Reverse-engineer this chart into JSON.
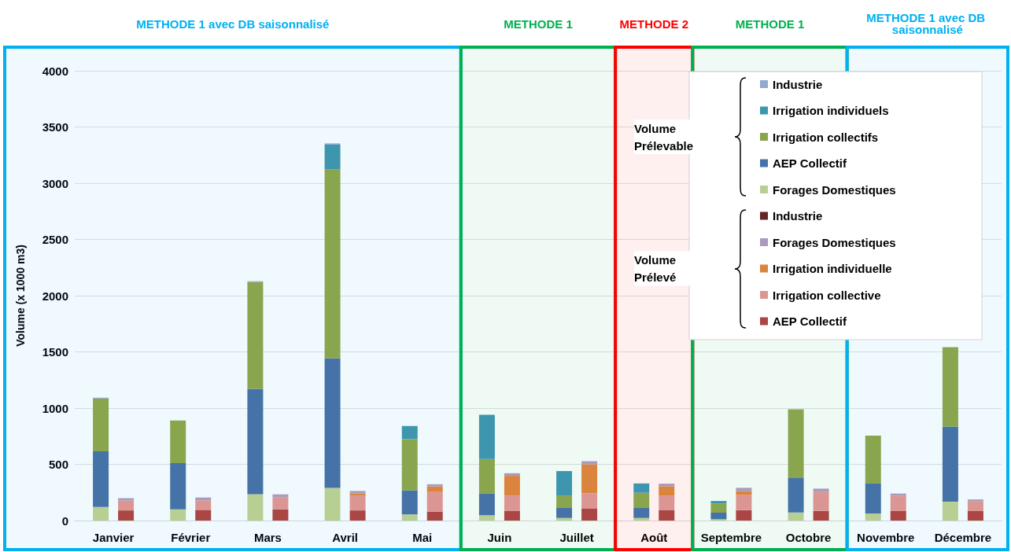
{
  "chart_data": [
    {
      "type": "bar",
      "stacked": true,
      "ylabel": "Volume (x 1000 m3)",
      "legend_title": "Volume Prélevable",
      "categories": [
        "Janvier",
        "Février",
        "Mars",
        "Avril",
        "Mai",
        "Juin",
        "Juillet",
        "Août",
        "Septembre",
        "Octobre",
        "Novembre",
        "Décembre"
      ],
      "series": [
        {
          "name": "Forages Domestiques",
          "color": "#b8cf94",
          "values": [
            120,
            100,
            235,
            290,
            55,
            47,
            23,
            23,
            12,
            72,
            63,
            167
          ]
        },
        {
          "name": "AEP Collectif",
          "color": "#4572a7",
          "values": [
            495,
            410,
            937,
            1153,
            213,
            195,
            89,
            89,
            58,
            305,
            270,
            668
          ]
        },
        {
          "name": "Irrigation collectifs",
          "color": "#89a54e",
          "values": [
            470,
            380,
            949,
            1679,
            456,
            305,
            111,
            135,
            81,
            612,
            423,
            707
          ]
        },
        {
          "name": "Irrigation individuels",
          "color": "#3d96ae",
          "values": [
            0,
            0,
            0,
            221,
            117,
            393,
            217,
            83,
            23,
            0,
            0,
            0
          ]
        },
        {
          "name": "Industrie",
          "color": "#93a9cf",
          "values": [
            8,
            0,
            8,
            11,
            0,
            0,
            0,
            0,
            0,
            0,
            0,
            null
          ]
        }
      ],
      "ylim": [
        0,
        4000
      ],
      "yticks": [
        0,
        500,
        1000,
        1500,
        2000,
        2500,
        3000,
        3500,
        4000
      ],
      "grid": "y",
      "legend": "top right",
      "bands": [
        {
          "axis": "x",
          "from": "Janvier",
          "to": "Mai",
          "label": "METHODE 1 avec DB saisonnalisé",
          "color": "#00b0f0"
        },
        {
          "axis": "x",
          "from": "Juin",
          "to": "Juillet",
          "label": "METHODE 1",
          "color": "#00b050"
        },
        {
          "axis": "x",
          "from": "Août",
          "to": "Août",
          "label": "METHODE 2",
          "color": "#ff0000"
        },
        {
          "axis": "x",
          "from": "Septembre",
          "to": "Octobre",
          "label": "METHODE 1",
          "color": "#00b050"
        },
        {
          "axis": "x",
          "from": "Novembre",
          "to": "Décembre",
          "label": "METHODE 1 avec DB saisonnalisé",
          "color": "#00b0f0"
        }
      ]
    },
    {
      "type": "bar",
      "stacked": true,
      "legend_title": "Volume Prélevé",
      "tick_labels": false,
      "categories": [
        null,
        null,
        null,
        null,
        null,
        null,
        null,
        null,
        null,
        null,
        null,
        null
      ],
      "series": [
        {
          "name": "AEP Collectif",
          "color": "#aa4643",
          "values": [
            90,
            95,
            100,
            90,
            80,
            84,
            109,
            91,
            93,
            86,
            84,
            84
          ]
        },
        {
          "name": "Irrigation collective",
          "color": "#db9694",
          "values": [
            87,
            85,
            105,
            130,
            174,
            137,
            133,
            132,
            137,
            172,
            135,
            86
          ]
        },
        {
          "name": "Irrigation individuelle",
          "color": "#db843d",
          "values": [
            0,
            0,
            0,
            20,
            50,
            177,
            258,
            82,
            33,
            0,
            0,
            0
          ]
        },
        {
          "name": "Forages Domestiques",
          "color": "#a99bbd",
          "values": [
            22,
            25,
            28,
            23,
            19,
            23,
            28,
            23,
            28,
            26,
            21,
            18
          ]
        },
        {
          "name": "Industrie",
          "color": "#632523",
          "values": [
            0,
            0,
            0,
            0,
            0,
            0,
            0,
            0,
            0,
            0,
            0,
            0
          ]
        }
      ],
      "ylim": [
        0,
        4000
      ],
      "legend": "top right"
    }
  ]
}
